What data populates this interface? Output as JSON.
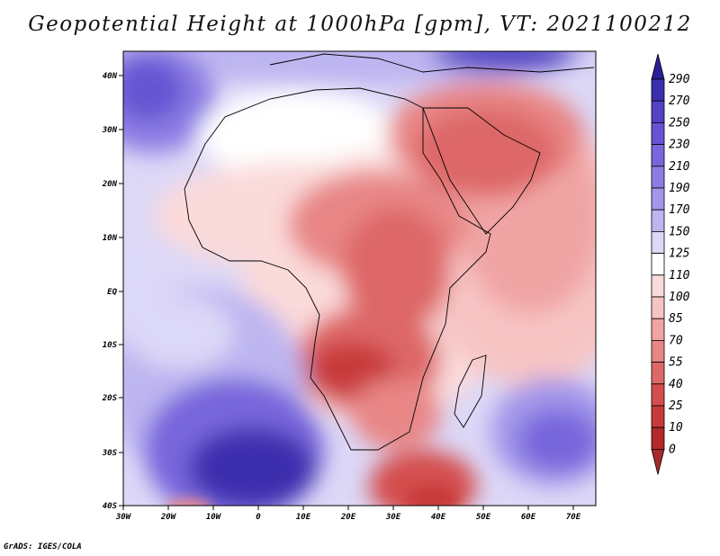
{
  "title": "Geopotential Height at 1000hPa [gpm], VT: 2021100212",
  "credit": "GrADS: IGES/COLA",
  "map": {
    "variable": "Geopotential Height at 1000hPa",
    "units": "gpm",
    "valid_time": "2021100212",
    "lon_range": [
      -30,
      75
    ],
    "lat_range": [
      -40,
      45
    ],
    "lon_labels": [
      "30W",
      "20W",
      "10W",
      "0",
      "10E",
      "20E",
      "30E",
      "40E",
      "50E",
      "60E",
      "70E"
    ],
    "lat_labels": [
      "40N",
      "30N",
      "20N",
      "10N",
      "EQ",
      "10S",
      "20S",
      "30S",
      "40S"
    ]
  },
  "colorbar": {
    "labels": [
      "290",
      "270",
      "250",
      "230",
      "210",
      "190",
      "170",
      "150",
      "125",
      "110",
      "100",
      "85",
      "70",
      "55",
      "40",
      "25",
      "10",
      "0"
    ],
    "colors": [
      "#2c1f96",
      "#3c2fae",
      "#5342c4",
      "#6654d2",
      "#7866dc",
      "#8c7de4",
      "#a397ea",
      "#bdb5f0",
      "#dcd8f7",
      "#ffffff",
      "#fbdada",
      "#f7c4c4",
      "#f0a4a4",
      "#e88686",
      "#de6868",
      "#d44e4e",
      "#c83a3a",
      "#b42a2a",
      "#a82a2a"
    ]
  }
}
